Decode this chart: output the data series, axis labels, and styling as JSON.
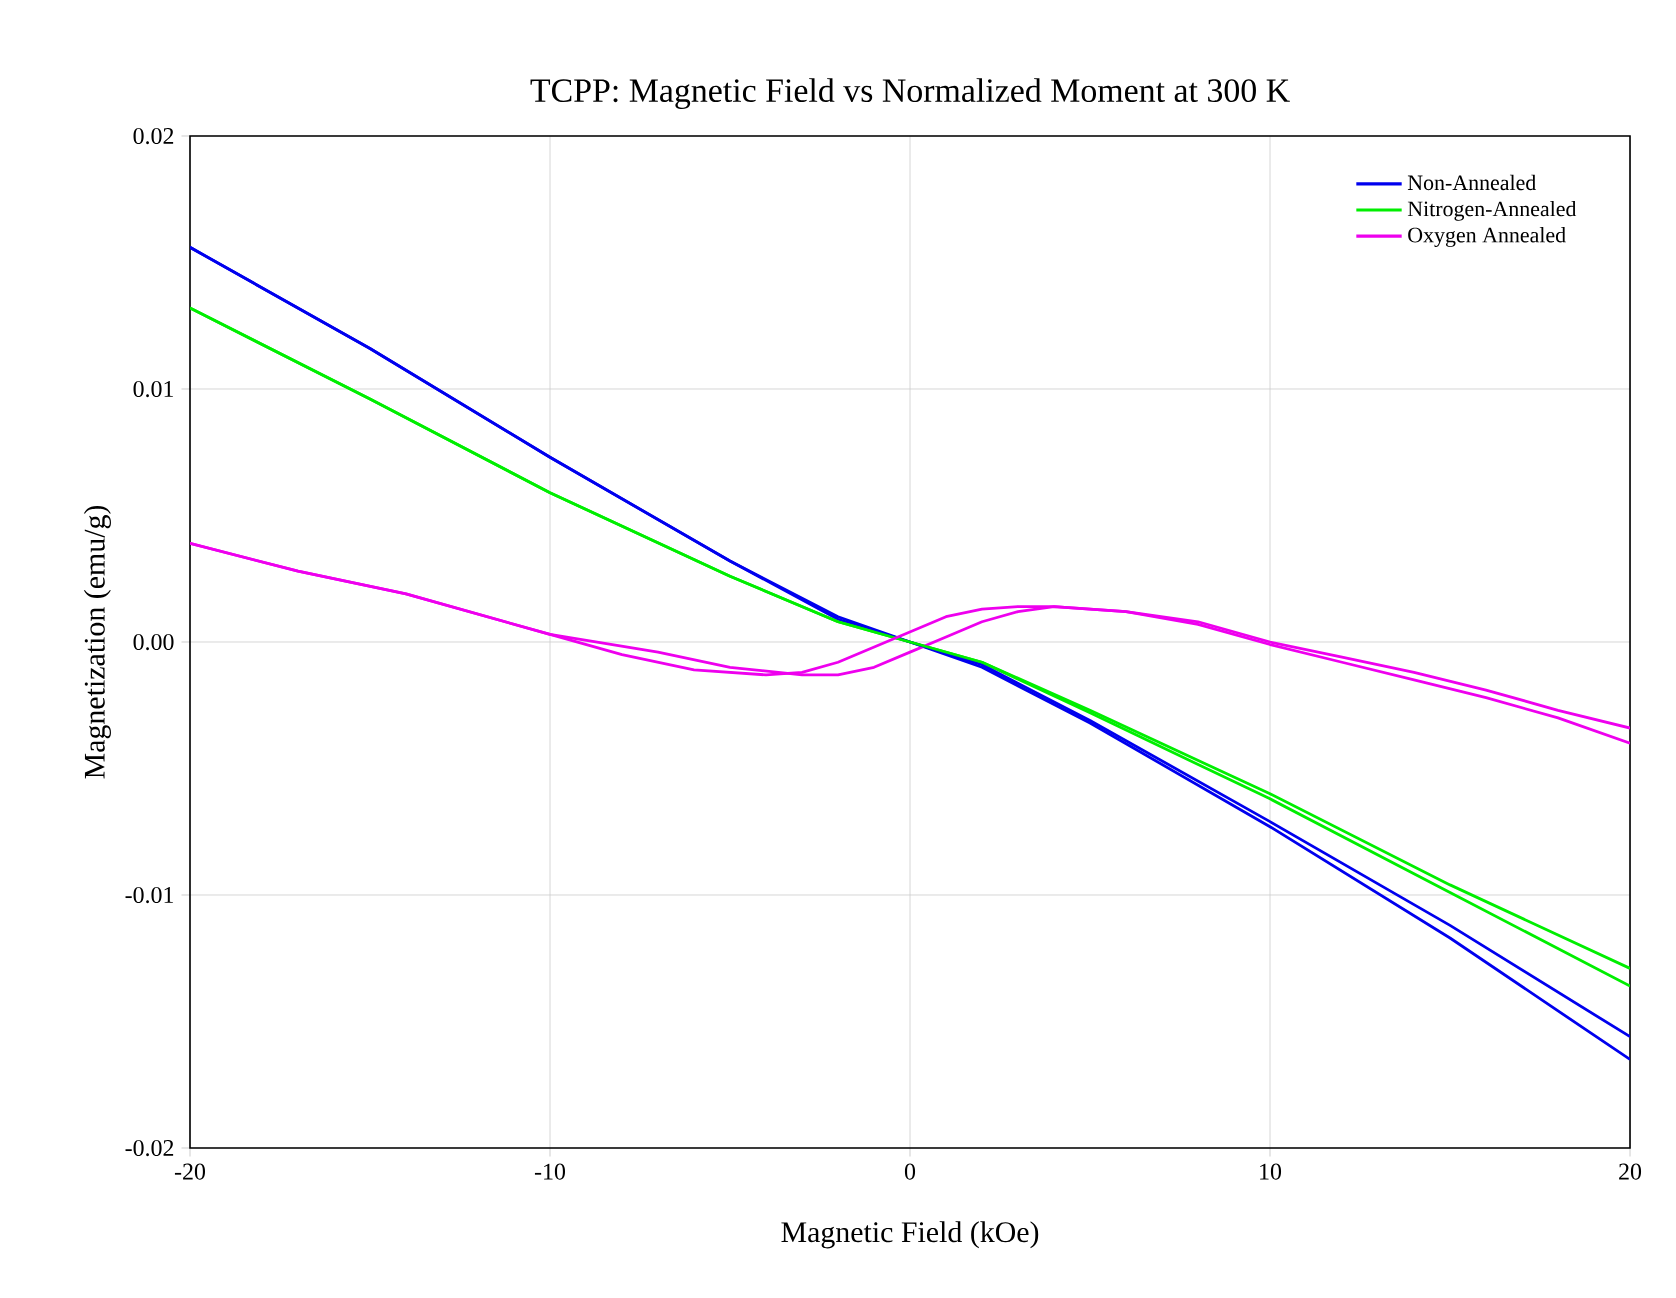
{
  "chart_data": {
    "type": "line",
    "title": "TCPP: Magnetic Field vs Normalized Moment at 300 K",
    "xlabel": "Magnetic Field (kOe)",
    "ylabel": "Magnetization (emu/g)",
    "xlim": [
      -20,
      20
    ],
    "xticks": [
      -20,
      -10,
      0,
      10,
      20
    ],
    "ylim": [
      -0.02,
      0.02
    ],
    "yticks": [
      {
        "value": -0.02,
        "label": "-0.02"
      },
      {
        "value": -0.01,
        "label": "-0.01"
      },
      {
        "value": 0,
        "label": "0.00"
      },
      {
        "value": 0.01,
        "label": "0.01"
      },
      {
        "value": 0.02,
        "label": "0.02"
      }
    ],
    "grid": true,
    "legend": "top right",
    "marker": "none",
    "line_style": "solid",
    "series": [
      {
        "name": "Non-Annealed",
        "color": "#0000ee",
        "x": [
          -20,
          -15,
          -10,
          -5,
          -2,
          0,
          2,
          5,
          10,
          15,
          20
        ],
        "values": [
          0.0156,
          0.0116,
          0.0073,
          0.0032,
          0.0009,
          0.0,
          -0.001,
          -0.0032,
          -0.0073,
          -0.0117,
          -0.0165
        ]
      },
      {
        "name": "Nitrogen-Annealed",
        "color": "#00ee00",
        "x": [
          -20,
          -15,
          -10,
          -5,
          -2,
          0,
          2,
          5,
          10,
          15,
          20
        ],
        "values": [
          0.0132,
          0.0096,
          0.0059,
          0.0026,
          0.0008,
          0.0,
          -0.0008,
          -0.0028,
          -0.0062,
          -0.0099,
          -0.0136
        ]
      },
      {
        "name": "Oxygen Annealed",
        "color": "#ee00ee",
        "x": [
          -20,
          -17,
          -14,
          -10,
          -7,
          -5,
          -3,
          -2,
          -1,
          0,
          1,
          2,
          3,
          4,
          6,
          8,
          10,
          12,
          14,
          16,
          18,
          20
        ],
        "values": [
          0.0039,
          0.0028,
          0.0019,
          0.0003,
          -0.0004,
          -0.001,
          -0.0013,
          -0.0013,
          -0.001,
          -0.0004,
          0.0002,
          0.0008,
          0.0012,
          0.0014,
          0.0012,
          0.0007,
          -0.0001,
          -0.0008,
          -0.0015,
          -0.0022,
          -0.003,
          -0.004
        ]
      },
      {
        "color": "#0000ee",
        "x": [
          -20,
          -15,
          -10,
          -5,
          -2,
          0,
          2,
          5,
          10,
          15,
          20
        ],
        "values": [
          0.0156,
          0.0116,
          0.0073,
          0.0032,
          0.001,
          0.0,
          -0.0009,
          -0.0031,
          -0.0071,
          -0.0112,
          -0.0156
        ]
      },
      {
        "color": "#00ee00",
        "x": [
          -20,
          -15,
          -10,
          -5,
          -2,
          0,
          2,
          5,
          10,
          15,
          20
        ],
        "values": [
          0.0132,
          0.0096,
          0.0059,
          0.0026,
          0.0008,
          0.0,
          -0.0008,
          -0.0027,
          -0.006,
          -0.0096,
          -0.0129
        ]
      },
      {
        "color": "#ee00ee",
        "x": [
          -20,
          -17,
          -14,
          -10,
          -8,
          -6,
          -4,
          -3,
          -2,
          -1,
          0,
          1,
          2,
          3,
          4,
          6,
          8,
          10,
          12,
          14,
          16,
          18,
          20
        ],
        "values": [
          0.0039,
          0.0028,
          0.0019,
          0.0003,
          -0.0005,
          -0.0011,
          -0.0013,
          -0.0012,
          -0.0008,
          -0.0002,
          0.0004,
          0.001,
          0.0013,
          0.0014,
          0.0014,
          0.0012,
          0.0008,
          0.0,
          -0.0006,
          -0.0012,
          -0.0019,
          -0.0027,
          -0.0034
        ]
      }
    ]
  }
}
